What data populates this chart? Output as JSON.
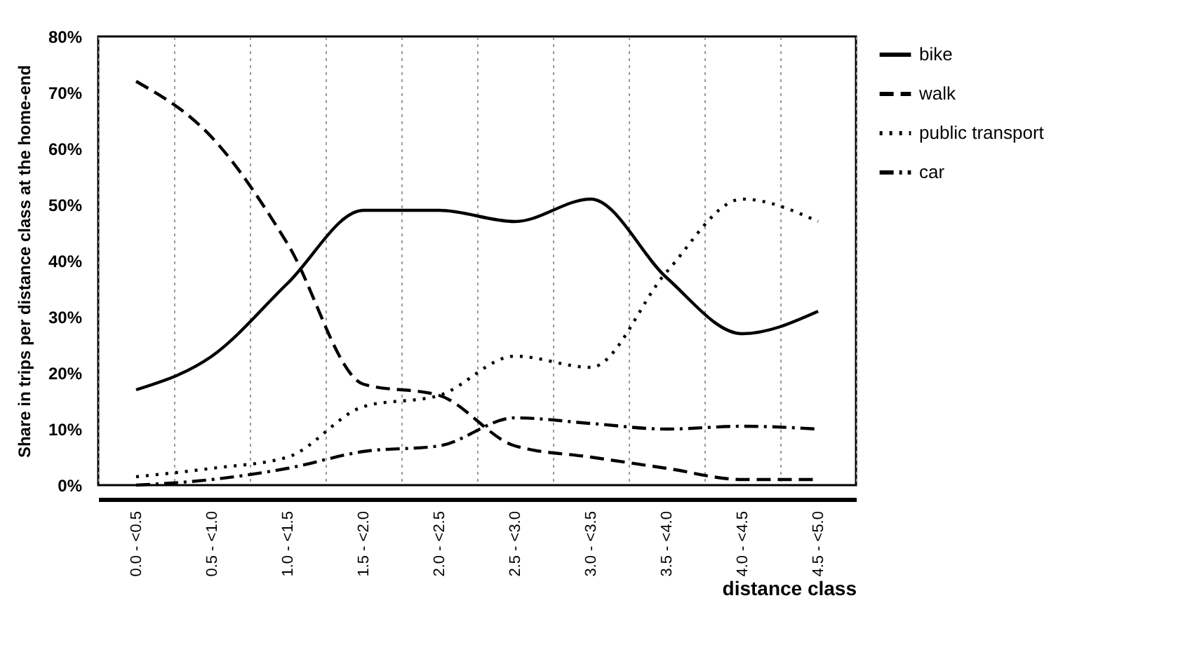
{
  "chart_data": {
    "type": "line",
    "xlabel": "distance class",
    "ylabel": "Share in trips per distance class at the home-end",
    "categories": [
      "0.0 - <0.5",
      "0.5 - <1.0",
      "1.0 - <1.5",
      "1.5 - <2.0",
      "2.0 - <2.5",
      "2.5 - <3.0",
      "3.0 - <3.5",
      "3.5 - <4.0",
      "4.0 - <4.5",
      "4.5 - <5.0"
    ],
    "series": [
      {
        "name": "bike",
        "color": "#000000",
        "line_style": "solid",
        "values": [
          17,
          23,
          36,
          49,
          49,
          47,
          51,
          37,
          27,
          31
        ]
      },
      {
        "name": "walk",
        "color": "#000000",
        "line_style": "dashed",
        "values": [
          72,
          62,
          43,
          18,
          16,
          7,
          5,
          3,
          1,
          1
        ]
      },
      {
        "name": "public transport",
        "color": "#000000",
        "line_style": "dotted",
        "values": [
          1.5,
          3,
          5,
          14,
          16,
          23,
          21,
          38,
          51,
          47
        ]
      },
      {
        "name": "car",
        "color": "#000000",
        "line_style": "dashdot",
        "values": [
          0,
          1,
          3,
          6,
          7,
          12,
          11,
          10,
          10.5,
          10
        ]
      }
    ],
    "ylim": [
      0,
      80
    ],
    "yticks": [
      {
        "value": 0,
        "label": "0%"
      },
      {
        "value": 10,
        "label": "10%"
      },
      {
        "value": 20,
        "label": "20%"
      },
      {
        "value": 30,
        "label": "30%"
      },
      {
        "value": 40,
        "label": "40%"
      },
      {
        "value": 50,
        "label": "50%"
      },
      {
        "value": 60,
        "label": "60%"
      },
      {
        "value": 70,
        "label": "70%"
      },
      {
        "value": 80,
        "label": "80%"
      }
    ],
    "grid": "x",
    "legend": "right"
  }
}
